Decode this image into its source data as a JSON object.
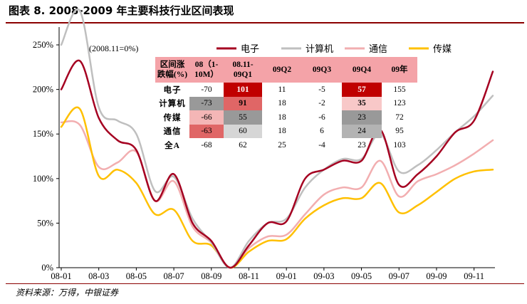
{
  "figure_title": "图表 8. 2008-2009 年主要科技行业区间表现",
  "source": "资料来源：万得，中银证券",
  "chart_data": {
    "type": "line",
    "annotation": "(2008.11=0%)",
    "x": [
      "2008-01",
      "2008-02",
      "2008-03",
      "2008-04",
      "2008-05",
      "2008-06",
      "2008-07",
      "2008-08",
      "2008-09",
      "2008-10",
      "2008-11",
      "2008-12",
      "2009-01",
      "2009-02",
      "2009-03",
      "2009-04",
      "2009-05",
      "2009-06",
      "2009-07",
      "2009-08",
      "2009-09",
      "2009-10",
      "2009-11",
      "2009-12"
    ],
    "xtick_labels": [
      "08-01",
      "08-03",
      "08-05",
      "08-07",
      "08-09",
      "08-11",
      "09-01",
      "09-03",
      "09-05",
      "09-07",
      "09-09",
      "09-11"
    ],
    "ylim": [
      0,
      270
    ],
    "yticks": [
      0,
      50,
      100,
      150,
      200,
      250
    ],
    "ytick_labels": [
      "0%",
      "50%",
      "100%",
      "150%",
      "200%",
      "250%"
    ],
    "grid": false,
    "legend_position": "top-right",
    "series": [
      {
        "name": "电子",
        "color": "#a50021",
        "values": [
          200,
          232,
          168,
          143,
          132,
          75,
          105,
          50,
          30,
          0,
          25,
          50,
          52,
          100,
          110,
          120,
          120,
          155,
          93,
          105,
          125,
          152,
          165,
          220
        ]
      },
      {
        "name": "计算机",
        "color": "#bfbfbf",
        "values": [
          250,
          288,
          180,
          165,
          150,
          86,
          102,
          55,
          28,
          0,
          30,
          50,
          55,
          90,
          110,
          122,
          122,
          150,
          108,
          115,
          132,
          152,
          170,
          193
        ]
      },
      {
        "name": "通信",
        "color": "#f2aeb0",
        "values": [
          163,
          160,
          113,
          118,
          130,
          75,
          97,
          46,
          28,
          0,
          22,
          35,
          37,
          60,
          82,
          90,
          90,
          120,
          80,
          97,
          105,
          115,
          128,
          143
        ]
      },
      {
        "name": "传媒",
        "color": "#ffc000",
        "values": [
          158,
          178,
          103,
          110,
          95,
          60,
          65,
          30,
          25,
          0,
          18,
          30,
          32,
          55,
          70,
          78,
          78,
          95,
          62,
          70,
          85,
          100,
          108,
          110
        ]
      }
    ],
    "table": {
      "header": [
        "区间涨\n跌幅(%)",
        "08（1-\n10M）",
        "08.11-\n09Q1",
        "09Q2",
        "09Q3",
        "09Q4",
        "09年"
      ],
      "rows": [
        {
          "label": "电子",
          "cells": [
            "-70",
            "101",
            "11",
            "-5",
            "57",
            "155"
          ]
        },
        {
          "label": "计算机",
          "cells": [
            "-73",
            "91",
            "18",
            "-2",
            "35",
            "123"
          ]
        },
        {
          "label": "传媒",
          "cells": [
            "-66",
            "55",
            "18",
            "-6",
            "23",
            "72"
          ]
        },
        {
          "label": "通信",
          "cells": [
            "-63",
            "60",
            "18",
            "6",
            "24",
            "95"
          ]
        },
        {
          "label": "全A",
          "cells": [
            "-68",
            "62",
            "25",
            "-4",
            "23",
            "103"
          ]
        }
      ]
    }
  }
}
